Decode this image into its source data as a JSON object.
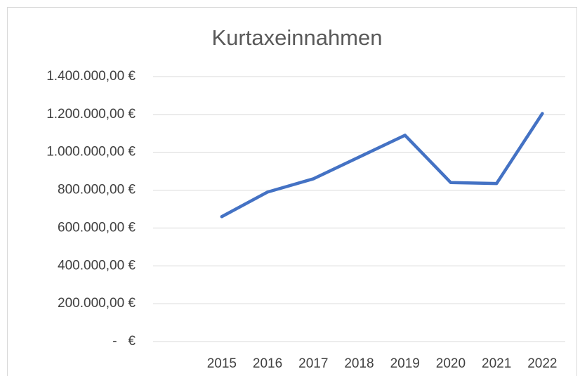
{
  "chart_data": {
    "type": "line",
    "title": "Kurtaxeinnahmen",
    "categories": [
      null,
      "2015",
      "2016",
      "2017",
      "2018",
      "2019",
      "2020",
      "2021",
      "2022"
    ],
    "values": [
      null,
      660000,
      790000,
      860000,
      975000,
      1090000,
      840000,
      835000,
      1205000
    ],
    "color": "#4472c4",
    "ylim": [
      0,
      1400000
    ],
    "yticks": [
      {
        "value": 0,
        "label": "-   €"
      },
      {
        "value": 200000,
        "label": "200.000,00 €"
      },
      {
        "value": 400000,
        "label": "400.000,00 €"
      },
      {
        "value": 600000,
        "label": "600.000,00 €"
      },
      {
        "value": 800000,
        "label": "800.000,00 €"
      },
      {
        "value": 1000000,
        "label": "1.000.000,00 €"
      },
      {
        "value": 1200000,
        "label": "1.200.000,00 €"
      },
      {
        "value": 1400000,
        "label": "1.400.000,00 €"
      }
    ],
    "grid": true
  }
}
